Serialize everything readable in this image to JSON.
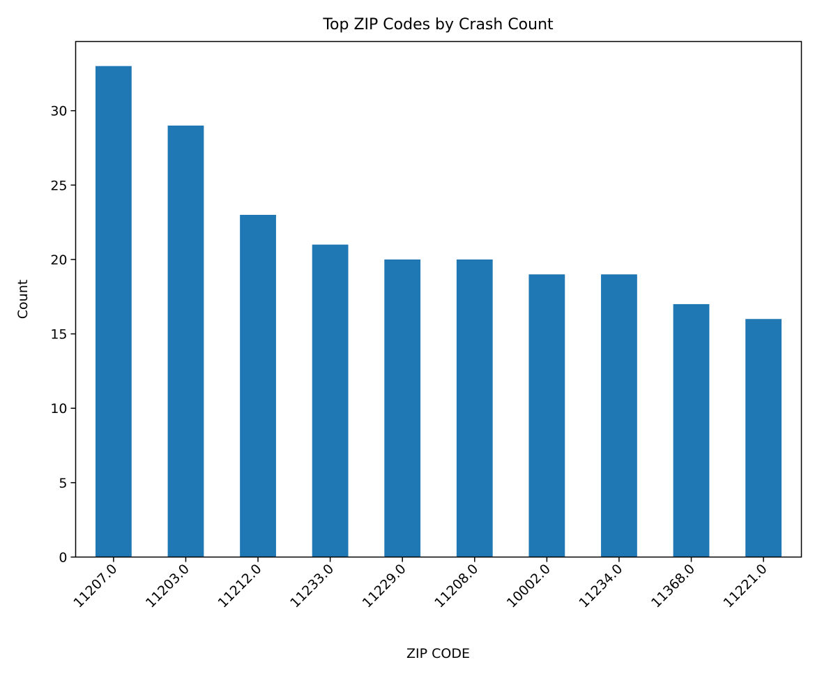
{
  "chart_data": {
    "type": "bar",
    "title": "Top ZIP Codes by Crash Count",
    "xlabel": "ZIP CODE",
    "ylabel": "Count",
    "categories": [
      "11207.0",
      "11203.0",
      "11212.0",
      "11233.0",
      "11229.0",
      "11208.0",
      "10002.0",
      "11234.0",
      "11368.0",
      "11221.0"
    ],
    "values": [
      33,
      29,
      23,
      21,
      20,
      20,
      19,
      19,
      17,
      16
    ],
    "ylim": [
      0,
      34.65
    ],
    "yticks": [
      "0",
      "5",
      "10",
      "15",
      "20",
      "25",
      "30"
    ],
    "bar_color": "#1f77b4",
    "grid": false,
    "legend": "none",
    "x_tick_rotation": "45 degrees"
  }
}
